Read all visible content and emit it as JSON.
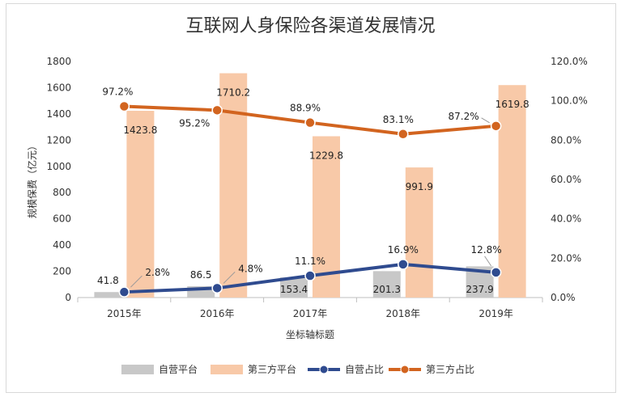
{
  "chart_data": {
    "type": "bar",
    "title": "互联网人身保险各渠道发展情况",
    "xlabel": "坐标轴标题",
    "ylabel": "规模保费（亿元）",
    "categories": [
      "2015年",
      "2016年",
      "2017年",
      "2018年",
      "2019年"
    ],
    "ylim": [
      0,
      1800
    ],
    "y2lim": [
      0,
      120
    ],
    "y_ticks": [
      "0",
      "200",
      "400",
      "600",
      "800",
      "1000",
      "1200",
      "1400",
      "1600",
      "1800"
    ],
    "y2_ticks": [
      "0.0%",
      "20.0%",
      "40.0%",
      "60.0%",
      "80.0%",
      "100.0%",
      "120.0%"
    ],
    "bar_series": [
      {
        "name": "自营平台",
        "values": [
          41.8,
          86.5,
          153.4,
          201.3,
          237.9
        ],
        "labels": [
          "41.8",
          "86.5",
          "153.4",
          "201.3",
          "237.9"
        ],
        "color": "#c8c8c8"
      },
      {
        "name": "第三方平台",
        "values": [
          1423.8,
          1710.2,
          1229.8,
          991.9,
          1619.8
        ],
        "labels": [
          "1423.8",
          "1710.2",
          "1229.8",
          "991.9",
          "1619.8"
        ],
        "color": "#f8c9a8"
      }
    ],
    "line_series": [
      {
        "name": "自营占比",
        "values": [
          2.8,
          4.8,
          11.1,
          16.9,
          12.8
        ],
        "labels": [
          "2.8%",
          "4.8%",
          "11.1%",
          "16.9%",
          "12.8%"
        ],
        "color": "#2f4b8f"
      },
      {
        "name": "第三方占比",
        "values": [
          97.2,
          95.2,
          88.9,
          83.1,
          87.2
        ],
        "labels": [
          "97.2%",
          "95.2%",
          "88.9%",
          "83.1%",
          "87.2%"
        ],
        "color": "#d2641f"
      }
    ],
    "grid": false,
    "legend": "bottom"
  }
}
